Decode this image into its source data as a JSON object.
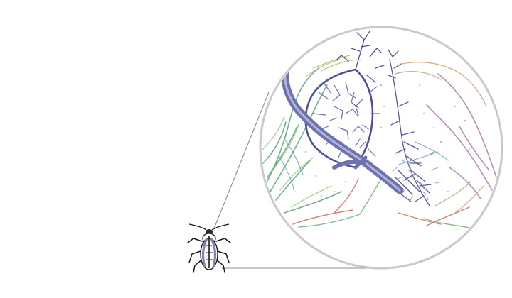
{
  "figure": {
    "icons": {
      "insect": "beetle-icon",
      "magnifier": "magnifier-lens-icon"
    },
    "colors": {
      "background": "#ffffff",
      "lens_rim": "#c9c9c9",
      "zoom_lines": "#8c8c8c",
      "insect_outline": "#1a1a1a",
      "insect_body": "#7e80b6",
      "main_trunk": "#6f73ad",
      "trunk_highlight": "#b9bbe0",
      "dense_branches": "#4e5196",
      "left_lateral": "#58a37d",
      "left_lateral_2": "#8cc46a",
      "right_lateral": "#b07aa5",
      "right_lateral_2": "#c9a070",
      "lower_branches": "#c46f5e",
      "teal_branches": "#5e9fa0"
    }
  }
}
